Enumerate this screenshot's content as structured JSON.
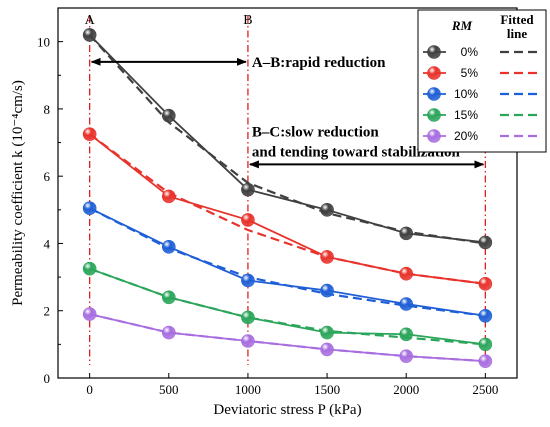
{
  "chart_data": {
    "type": "line",
    "xlabel": "Deviatoric stress P (kPa)",
    "ylabel": "Permeability coefficient k (10⁻⁴cm/s)",
    "xlim": [
      -200,
      2700
    ],
    "ylim": [
      0,
      11
    ],
    "x_ticks": [
      0,
      500,
      1000,
      1500,
      2000,
      2500
    ],
    "y_ticks": [
      0,
      2,
      4,
      6,
      8,
      10
    ],
    "x": [
      0,
      500,
      1000,
      1500,
      2000,
      2500
    ],
    "legend": {
      "title": "RM",
      "fitted_title_line1": "Fitted",
      "fitted_title_line2": "line",
      "placement": "top-right"
    },
    "series": [
      {
        "name": "0%",
        "color": "#404040",
        "values": [
          10.2,
          7.8,
          5.6,
          5.0,
          4.3,
          4.03
        ],
        "fitted": [
          10.2,
          7.6,
          5.8,
          4.9,
          4.35,
          4.0
        ]
      },
      {
        "name": "5%",
        "color": "#e8322b",
        "values": [
          7.25,
          5.4,
          4.7,
          3.6,
          3.1,
          2.8
        ],
        "fitted": [
          7.25,
          5.5,
          4.4,
          3.6,
          3.1,
          2.8
        ]
      },
      {
        "name": "10%",
        "color": "#1f5fd6",
        "values": [
          5.05,
          3.9,
          2.9,
          2.6,
          2.2,
          1.85
        ],
        "fitted": [
          5.05,
          3.85,
          3.0,
          2.5,
          2.15,
          1.85
        ]
      },
      {
        "name": "15%",
        "color": "#2aa55a",
        "values": [
          3.25,
          2.4,
          1.8,
          1.35,
          1.3,
          1.0
        ],
        "fitted": [
          3.25,
          2.4,
          1.8,
          1.4,
          1.2,
          1.0
        ]
      },
      {
        "name": "20%",
        "color": "#a86ee0",
        "values": [
          1.9,
          1.35,
          1.1,
          0.85,
          0.65,
          0.5
        ],
        "fitted": [
          1.9,
          1.35,
          1.1,
          0.85,
          0.65,
          0.5
        ]
      }
    ],
    "markers": [
      {
        "label": "A",
        "x": 0
      },
      {
        "label": "B",
        "x": 1000
      },
      {
        "x": 2500
      }
    ],
    "annotations": [
      {
        "text": "A–B:rapid reduction",
        "x_from": 0,
        "x_to": 1000,
        "y": 9.4
      },
      {
        "text": "B–C:slow reduction",
        "text2": "and tending toward stabilization",
        "x_from": 1000,
        "x_to": 2500,
        "y": 6.35
      }
    ]
  }
}
